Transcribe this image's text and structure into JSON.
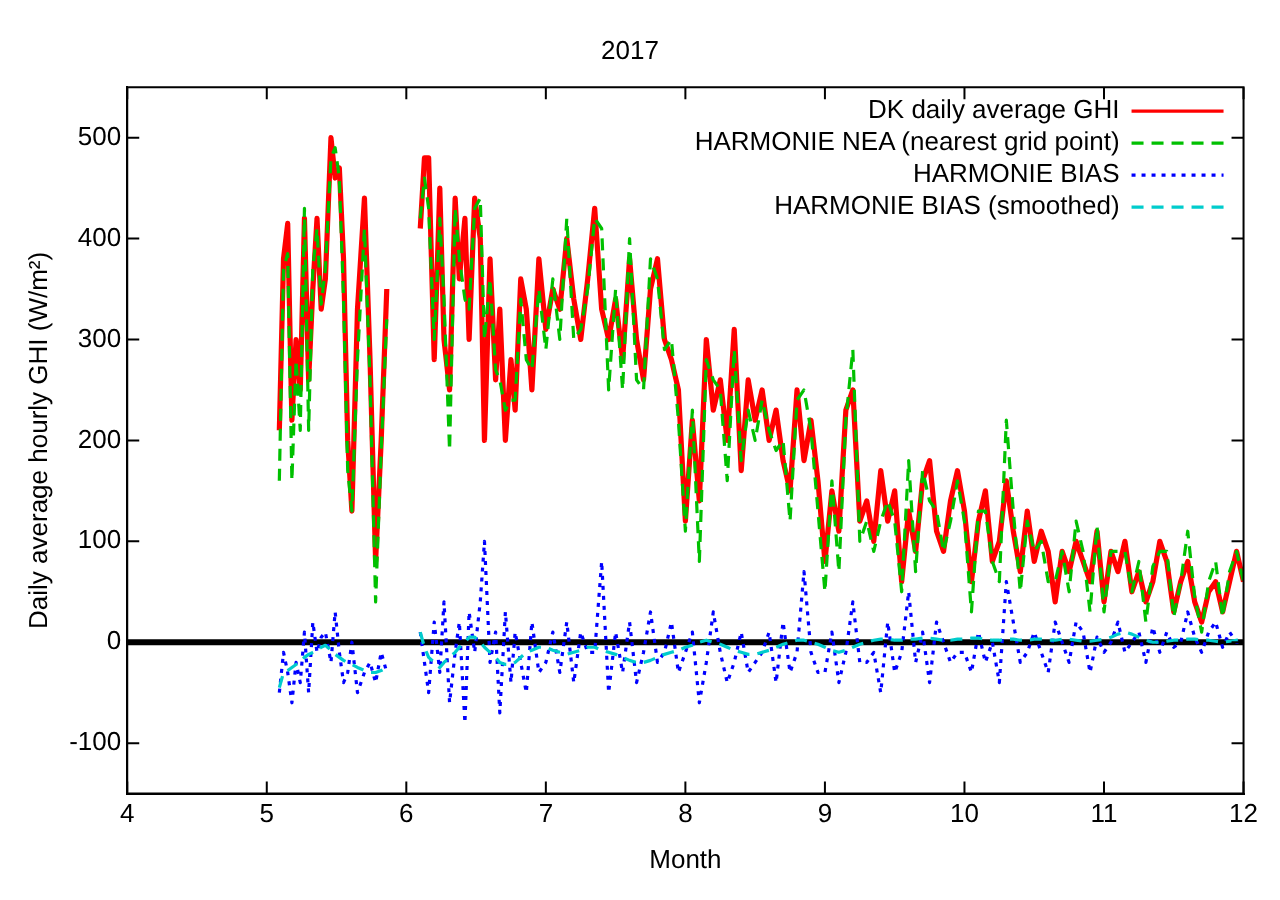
{
  "chart_data": {
    "type": "line",
    "title": "2017",
    "xlabel": "Month",
    "ylabel": "Daily average hourly GHI (W/m²)",
    "x": [
      5.09,
      5.12,
      5.15,
      5.18,
      5.21,
      5.24,
      5.27,
      5.3,
      5.33,
      5.36,
      5.39,
      5.42,
      5.46,
      5.49,
      5.52,
      5.55,
      5.58,
      5.61,
      5.65,
      5.7,
      5.74,
      5.78,
      5.82,
      5.86,
      6.0,
      6.1,
      6.13,
      6.16,
      6.2,
      6.24,
      6.27,
      6.31,
      6.35,
      6.38,
      6.42,
      6.45,
      6.49,
      6.53,
      6.56,
      6.6,
      6.64,
      6.67,
      6.71,
      6.75,
      6.78,
      6.82,
      6.86,
      6.9,
      6.95,
      7.0,
      7.05,
      7.1,
      7.15,
      7.2,
      7.25,
      7.3,
      7.35,
      7.4,
      7.45,
      7.5,
      7.55,
      7.6,
      7.65,
      7.7,
      7.75,
      7.8,
      7.85,
      7.9,
      7.95,
      8.0,
      8.05,
      8.1,
      8.15,
      8.2,
      8.25,
      8.3,
      8.35,
      8.4,
      8.45,
      8.5,
      8.55,
      8.6,
      8.65,
      8.7,
      8.75,
      8.8,
      8.85,
      8.9,
      8.95,
      9.0,
      9.05,
      9.1,
      9.15,
      9.2,
      9.25,
      9.3,
      9.35,
      9.4,
      9.45,
      9.5,
      9.55,
      9.6,
      9.65,
      9.7,
      9.75,
      9.8,
      9.85,
      9.9,
      9.95,
      10.0,
      10.05,
      10.1,
      10.15,
      10.2,
      10.25,
      10.3,
      10.35,
      10.4,
      10.45,
      10.5,
      10.55,
      10.6,
      10.65,
      10.7,
      10.75,
      10.8,
      10.85,
      10.9,
      10.95,
      11.0,
      11.05,
      11.1,
      11.15,
      11.2,
      11.25,
      11.3,
      11.35,
      11.4,
      11.45,
      11.5,
      11.55,
      11.6,
      11.65,
      11.7,
      11.75,
      11.8,
      11.85,
      11.9,
      11.95,
      12.0
    ],
    "series": [
      {
        "name": "DK daily average GHI",
        "color": "#ff0000",
        "line_style": "solid",
        "values": [
          210,
          380,
          415,
          220,
          300,
          250,
          420,
          260,
          350,
          420,
          330,
          360,
          500,
          460,
          470,
          380,
          200,
          130,
          330,
          440,
          280,
          80,
          200,
          350,
          null,
          410,
          480,
          480,
          280,
          450,
          300,
          250,
          440,
          360,
          420,
          300,
          440,
          400,
          200,
          380,
          260,
          330,
          200,
          280,
          230,
          360,
          330,
          250,
          380,
          310,
          350,
          330,
          400,
          340,
          300,
          360,
          430,
          330,
          300,
          340,
          280,
          380,
          300,
          260,
          350,
          380,
          300,
          280,
          250,
          120,
          220,
          140,
          300,
          230,
          260,
          200,
          310,
          170,
          260,
          220,
          250,
          200,
          230,
          180,
          150,
          250,
          180,
          220,
          160,
          80,
          150,
          110,
          230,
          250,
          120,
          140,
          100,
          170,
          120,
          150,
          60,
          130,
          90,
          160,
          180,
          110,
          90,
          140,
          170,
          130,
          60,
          120,
          150,
          80,
          100,
          160,
          110,
          70,
          130,
          80,
          110,
          90,
          40,
          90,
          70,
          100,
          80,
          60,
          110,
          40,
          90,
          70,
          100,
          50,
          70,
          40,
          60,
          100,
          80,
          30,
          60,
          80,
          40,
          20,
          50,
          60,
          30,
          60,
          90,
          60
        ]
      },
      {
        "name": "HARMONIE NEA (nearest grid point)",
        "color": "#00c000",
        "line_style": "dashed",
        "values": [
          160,
          370,
          385,
          160,
          280,
          210,
          430,
          210,
          370,
          410,
          335,
          370,
          480,
          490,
          460,
          340,
          170,
          130,
          280,
          410,
          260,
          40,
          190,
          320,
          null,
          420,
          460,
          430,
          300,
          420,
          340,
          190,
          430,
          380,
          340,
          330,
          430,
          440,
          300,
          360,
          270,
          260,
          230,
          240,
          240,
          340,
          280,
          270,
          350,
          290,
          360,
          300,
          420,
          300,
          310,
          350,
          420,
          410,
          250,
          350,
          250,
          400,
          260,
          250,
          380,
          360,
          290,
          300,
          220,
          110,
          230,
          80,
          280,
          260,
          250,
          160,
          290,
          180,
          230,
          200,
          240,
          210,
          190,
          200,
          120,
          240,
          250,
          210,
          130,
          50,
          160,
          70,
          220,
          290,
          100,
          120,
          90,
          120,
          140,
          120,
          50,
          180,
          70,
          170,
          140,
          130,
          90,
          120,
          160,
          120,
          30,
          130,
          130,
          80,
          60,
          220,
          130,
          50,
          120,
          90,
          100,
          60,
          60,
          90,
          50,
          120,
          90,
          30,
          115,
          30,
          90,
          90,
          90,
          50,
          80,
          20,
          75,
          90,
          90,
          25,
          60,
          110,
          45,
          10,
          60,
          80,
          25,
          70,
          90,
          60
        ]
      },
      {
        "name": "HARMONIE BIAS",
        "color": "#0000ff",
        "line_style": "dotted",
        "values": [
          -50,
          -10,
          -30,
          -60,
          -20,
          -40,
          10,
          -50,
          20,
          -10,
          5,
          10,
          -20,
          30,
          -10,
          -40,
          -30,
          0,
          -50,
          -30,
          -20,
          -40,
          -10,
          -30,
          null,
          10,
          -20,
          -50,
          20,
          -30,
          40,
          -60,
          -10,
          20,
          -80,
          30,
          -10,
          40,
          100,
          -20,
          10,
          -70,
          30,
          -40,
          10,
          -20,
          -50,
          20,
          -30,
          -20,
          10,
          -30,
          20,
          -40,
          10,
          -10,
          -10,
          80,
          -50,
          10,
          -30,
          20,
          -40,
          -10,
          30,
          -20,
          -10,
          20,
          -30,
          -10,
          10,
          -60,
          -20,
          30,
          -10,
          -40,
          -20,
          10,
          -30,
          -20,
          -10,
          10,
          -40,
          20,
          -30,
          -10,
          70,
          -10,
          -30,
          -30,
          10,
          -40,
          -10,
          40,
          -20,
          -20,
          -10,
          -50,
          20,
          -30,
          -10,
          50,
          -20,
          10,
          -40,
          20,
          0,
          -20,
          -10,
          -10,
          -30,
          10,
          -20,
          0,
          -40,
          60,
          20,
          -20,
          -10,
          10,
          -10,
          -30,
          20,
          0,
          -20,
          20,
          10,
          -30,
          5,
          -10,
          0,
          20,
          -10,
          0,
          10,
          -20,
          15,
          -10,
          10,
          -5,
          0,
          30,
          5,
          -10,
          10,
          20,
          -5,
          10,
          0,
          0
        ]
      },
      {
        "name": "HARMONIE BIAS (smoothed)",
        "color": "#00cccc",
        "line_style": "dashed",
        "values": [
          -45,
          -30,
          -28,
          -25,
          -22,
          -20,
          -15,
          -12,
          -10,
          -8,
          -5,
          -3,
          -8,
          -12,
          -15,
          -18,
          -20,
          -22,
          -25,
          -28,
          -30,
          -30,
          -28,
          -25,
          null,
          10,
          -5,
          -15,
          -20,
          -25,
          -20,
          -15,
          -10,
          -5,
          0,
          5,
          5,
          0,
          -5,
          -10,
          -15,
          -20,
          -22,
          -22,
          -20,
          -15,
          -10,
          -8,
          -5,
          -5,
          -8,
          -10,
          -12,
          -10,
          -8,
          -5,
          -5,
          -8,
          -10,
          -12,
          -15,
          -18,
          -20,
          -20,
          -18,
          -15,
          -12,
          -10,
          -8,
          -5,
          -3,
          0,
          2,
          0,
          -2,
          -5,
          -8,
          -10,
          -12,
          -12,
          -10,
          -8,
          -5,
          -2,
          0,
          2,
          2,
          0,
          -2,
          -5,
          -8,
          -10,
          -8,
          -5,
          -2,
          0,
          2,
          3,
          3,
          2,
          2,
          3,
          3,
          4,
          4,
          3,
          2,
          2,
          3,
          3,
          4,
          4,
          3,
          2,
          2,
          3,
          3,
          2,
          2,
          3,
          3,
          2,
          2,
          3,
          3,
          2,
          1,
          1,
          2,
          3,
          5,
          8,
          10,
          8,
          5,
          2,
          0,
          0,
          1,
          2,
          2,
          3,
          3,
          2,
          2,
          1,
          0,
          1,
          2,
          2
        ]
      }
    ],
    "xlim": [
      4,
      12
    ],
    "xticks": [
      4,
      5,
      6,
      7,
      8,
      9,
      10,
      11,
      12
    ],
    "ylim": [
      -150,
      550
    ],
    "yticks": [
      -100,
      0,
      100,
      200,
      300,
      400,
      500
    ],
    "ref_lines": [
      {
        "axis": "y",
        "value": 0,
        "color": "#000000"
      }
    ],
    "grid": false,
    "legend": "top right",
    "marker": "none"
  }
}
